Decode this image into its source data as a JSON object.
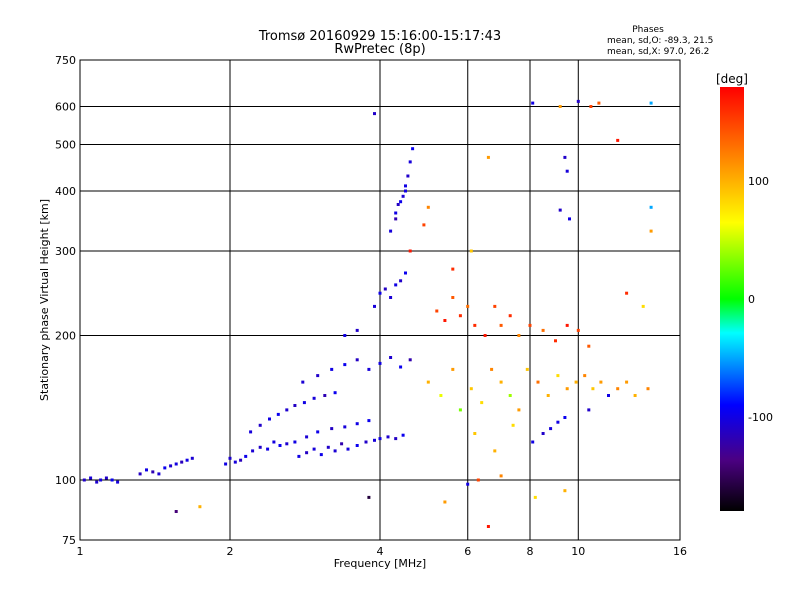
{
  "chart_data": {
    "type": "scatter",
    "title": "Tromsø 20160929 15:16:00-15:17:43",
    "subtitle": "RwPretec (8p)",
    "xlabel": "Frequency [MHz]",
    "ylabel": "Stationary phase Virtual Height [km]",
    "x_scale": "log",
    "y_scale": "log",
    "xlim": [
      1,
      16
    ],
    "ylim": [
      75,
      750
    ],
    "x_ticks": [
      1,
      2,
      4,
      6,
      8,
      10,
      16
    ],
    "y_ticks": [
      75,
      100,
      200,
      300,
      400,
      500,
      600,
      750
    ],
    "grid": true,
    "stats": {
      "header": "Phases",
      "line_o": "mean, sd,O: -89.3, 21.5",
      "line_x": "mean, sd,X:  97.0, 26.2"
    },
    "colorbar": {
      "label": "[deg]",
      "range": [
        -180,
        180
      ],
      "ticks": [
        100,
        0,
        -100
      ]
    },
    "series": [
      {
        "values": [
          [
            1.02,
            100,
            -110
          ],
          [
            1.05,
            101,
            -105
          ],
          [
            1.08,
            99,
            -108
          ],
          [
            1.1,
            100,
            -102
          ],
          [
            1.13,
            101,
            -110
          ],
          [
            1.16,
            100,
            -95
          ],
          [
            1.19,
            99,
            -104
          ],
          [
            1.32,
            103,
            -112
          ],
          [
            1.36,
            105,
            -100
          ],
          [
            1.4,
            104,
            -118
          ],
          [
            1.44,
            103,
            -106
          ],
          [
            1.48,
            106,
            -96
          ],
          [
            1.52,
            107,
            -108
          ],
          [
            1.56,
            108,
            -102
          ],
          [
            1.6,
            109,
            -115
          ],
          [
            1.64,
            110,
            -100
          ],
          [
            1.68,
            111,
            -106
          ],
          [
            1.56,
            86,
            -140
          ],
          [
            1.74,
            88,
            100
          ],
          [
            1.96,
            108,
            -100
          ],
          [
            2.0,
            111,
            -108
          ],
          [
            2.05,
            109,
            -104
          ],
          [
            2.1,
            110,
            -115
          ],
          [
            2.15,
            112,
            -98
          ],
          [
            2.22,
            115,
            -106
          ],
          [
            2.3,
            117,
            -110
          ],
          [
            2.38,
            116,
            -100
          ],
          [
            2.45,
            120,
            -102
          ],
          [
            2.52,
            118,
            -96
          ],
          [
            2.6,
            119,
            -108
          ],
          [
            2.2,
            126,
            -104
          ],
          [
            2.3,
            130,
            -110
          ],
          [
            2.4,
            134,
            -100
          ],
          [
            2.5,
            137,
            -96
          ],
          [
            2.6,
            140,
            -108
          ],
          [
            2.7,
            143,
            -112
          ],
          [
            2.82,
            145,
            -100
          ],
          [
            2.95,
            148,
            -104
          ],
          [
            3.1,
            150,
            -118
          ],
          [
            3.25,
            152,
            -96
          ],
          [
            2.75,
            112,
            -100
          ],
          [
            2.85,
            114,
            -112
          ],
          [
            2.95,
            116,
            -104
          ],
          [
            3.05,
            113,
            -98
          ],
          [
            3.15,
            117,
            -110
          ],
          [
            3.25,
            115,
            -106
          ],
          [
            3.35,
            119,
            -120
          ],
          [
            3.45,
            116,
            -102
          ],
          [
            3.6,
            118,
            -96
          ],
          [
            3.75,
            120,
            -110
          ],
          [
            3.9,
            121,
            -104
          ],
          [
            4.0,
            122,
            -100
          ],
          [
            4.15,
            123,
            -108
          ],
          [
            4.3,
            122,
            -112
          ],
          [
            4.45,
            124,
            -96
          ],
          [
            2.7,
            120,
            -100
          ],
          [
            2.85,
            123,
            -106
          ],
          [
            3.0,
            126,
            -98
          ],
          [
            3.2,
            128,
            -112
          ],
          [
            3.4,
            129,
            -104
          ],
          [
            3.6,
            131,
            -100
          ],
          [
            3.8,
            133,
            -96
          ],
          [
            2.8,
            160,
            -106
          ],
          [
            3.0,
            165,
            -110
          ],
          [
            3.2,
            170,
            -100
          ],
          [
            3.4,
            174,
            -96
          ],
          [
            3.6,
            178,
            -112
          ],
          [
            3.8,
            170,
            -104
          ],
          [
            4.0,
            175,
            -100
          ],
          [
            4.2,
            180,
            -108
          ],
          [
            4.4,
            172,
            -96
          ],
          [
            4.6,
            178,
            -120
          ],
          [
            3.4,
            200,
            -100
          ],
          [
            3.6,
            205,
            -110
          ],
          [
            3.9,
            230,
            -104
          ],
          [
            4.0,
            245,
            -98
          ],
          [
            4.1,
            250,
            -112
          ],
          [
            4.2,
            240,
            -106
          ],
          [
            4.3,
            255,
            -100
          ],
          [
            4.4,
            260,
            -110
          ],
          [
            4.5,
            270,
            -96
          ],
          [
            4.2,
            330,
            -104
          ],
          [
            4.3,
            360,
            -100
          ],
          [
            4.35,
            375,
            -112
          ],
          [
            4.4,
            380,
            -98
          ],
          [
            4.45,
            390,
            -106
          ],
          [
            4.5,
            410,
            -100
          ],
          [
            4.55,
            430,
            -110
          ],
          [
            4.6,
            460,
            -104
          ],
          [
            4.65,
            490,
            -96
          ],
          [
            4.3,
            350,
            -120
          ],
          [
            4.5,
            400,
            -100
          ],
          [
            3.9,
            580,
            -110
          ],
          [
            3.8,
            92,
            -160
          ],
          [
            5.4,
            90,
            110
          ],
          [
            6.0,
            98,
            -100
          ],
          [
            6.3,
            100,
            150
          ],
          [
            6.6,
            80,
            170
          ],
          [
            7.0,
            102,
            120
          ],
          [
            8.2,
            92,
            80
          ],
          [
            9.4,
            95,
            100
          ],
          [
            4.6,
            300,
            170
          ],
          [
            4.9,
            340,
            150
          ],
          [
            5.0,
            370,
            120
          ],
          [
            5.2,
            225,
            150
          ],
          [
            5.4,
            215,
            170
          ],
          [
            5.6,
            240,
            140
          ],
          [
            5.8,
            220,
            160
          ],
          [
            6.0,
            230,
            130
          ],
          [
            6.2,
            210,
            160
          ],
          [
            6.5,
            200,
            170
          ],
          [
            6.8,
            230,
            150
          ],
          [
            7.0,
            210,
            140
          ],
          [
            7.3,
            220,
            160
          ],
          [
            7.6,
            200,
            120
          ],
          [
            8.0,
            210,
            150
          ],
          [
            8.5,
            205,
            130
          ],
          [
            9.0,
            195,
            160
          ],
          [
            9.5,
            210,
            170
          ],
          [
            10.0,
            205,
            150
          ],
          [
            10.5,
            190,
            140
          ],
          [
            5.0,
            160,
            100
          ],
          [
            5.3,
            150,
            60
          ],
          [
            5.6,
            170,
            110
          ],
          [
            5.8,
            140,
            30
          ],
          [
            6.1,
            155,
            90
          ],
          [
            6.4,
            145,
            80
          ],
          [
            6.7,
            170,
            120
          ],
          [
            7.0,
            160,
            100
          ],
          [
            7.3,
            150,
            40
          ],
          [
            7.6,
            140,
            110
          ],
          [
            7.9,
            170,
            90
          ],
          [
            8.3,
            160,
            130
          ],
          [
            8.7,
            150,
            100
          ],
          [
            9.1,
            165,
            80
          ],
          [
            9.5,
            155,
            110
          ],
          [
            9.9,
            160,
            100
          ],
          [
            10.3,
            165,
            120
          ],
          [
            10.7,
            155,
            90
          ],
          [
            11.1,
            160,
            110
          ],
          [
            11.5,
            150,
            100
          ],
          [
            12.0,
            155,
            120
          ],
          [
            12.5,
            160,
            110
          ],
          [
            13.0,
            150,
            100
          ],
          [
            13.8,
            155,
            120
          ],
          [
            6.2,
            125,
            90
          ],
          [
            6.8,
            115,
            100
          ],
          [
            7.4,
            130,
            80
          ],
          [
            8.1,
            120,
            -100
          ],
          [
            8.5,
            125,
            -110
          ],
          [
            8.8,
            128,
            -104
          ],
          [
            9.1,
            132,
            -100
          ],
          [
            9.4,
            135,
            -96
          ],
          [
            10.5,
            140,
            -110
          ],
          [
            11.5,
            150,
            -100
          ],
          [
            8.1,
            610,
            -100
          ],
          [
            9.2,
            600,
            110
          ],
          [
            10.0,
            615,
            -110
          ],
          [
            10.6,
            600,
            150
          ],
          [
            11.0,
            610,
            140
          ],
          [
            12.0,
            510,
            170
          ],
          [
            14.0,
            610,
            -50
          ],
          [
            6.6,
            470,
            110
          ],
          [
            9.4,
            470,
            -110
          ],
          [
            9.5,
            440,
            -104
          ],
          [
            9.2,
            365,
            -110
          ],
          [
            9.6,
            350,
            -100
          ],
          [
            5.6,
            275,
            160
          ],
          [
            6.1,
            300,
            90
          ],
          [
            14.0,
            370,
            -50
          ],
          [
            14.0,
            330,
            110
          ],
          [
            12.5,
            245,
            160
          ],
          [
            13.5,
            230,
            80
          ]
        ]
      }
    ]
  }
}
